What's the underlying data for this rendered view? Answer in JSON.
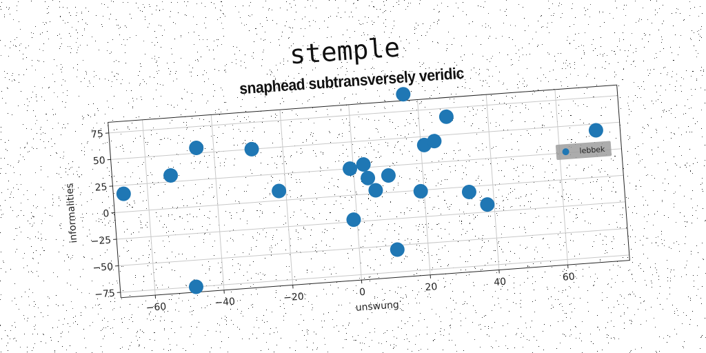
{
  "suptitle": "stemple",
  "colors": {
    "marker": "#1f77b4",
    "legend_bg": "#9e9e9e",
    "grid": "#c8c8c8"
  },
  "chart_data": {
    "type": "scatter",
    "title": "snaphead subtransversely veridic",
    "xlabel": "unswung",
    "ylabel": "informalities",
    "xlim": [
      -70,
      78
    ],
    "ylim": [
      -80,
      85
    ],
    "xticks": [
      -60,
      -40,
      -20,
      0,
      20,
      40,
      60
    ],
    "yticks": [
      -75,
      -50,
      -25,
      0,
      25,
      50,
      75
    ],
    "grid": true,
    "legend_position": "right",
    "series": [
      {
        "name": "lebbek",
        "points": [
          {
            "x": -67,
            "y": 17
          },
          {
            "x": -53,
            "y": 31
          },
          {
            "x": -45,
            "y": 55
          },
          {
            "x": -29,
            "y": 50
          },
          {
            "x": -22,
            "y": 9
          },
          {
            "x": -48,
            "y": -75
          },
          {
            "x": -1,
            "y": 25
          },
          {
            "x": 3,
            "y": 28
          },
          {
            "x": 4,
            "y": 15
          },
          {
            "x": 10,
            "y": 16
          },
          {
            "x": 6,
            "y": 3
          },
          {
            "x": -1,
            "y": -23
          },
          {
            "x": 19,
            "y": -1
          },
          {
            "x": 11,
            "y": -54
          },
          {
            "x": 16,
            "y": 91
          },
          {
            "x": 21,
            "y": 42
          },
          {
            "x": 24,
            "y": 45
          },
          {
            "x": 28,
            "y": 67
          },
          {
            "x": 33,
            "y": -5
          },
          {
            "x": 38,
            "y": -18
          },
          {
            "x": 71,
            "y": 44
          }
        ]
      }
    ]
  }
}
